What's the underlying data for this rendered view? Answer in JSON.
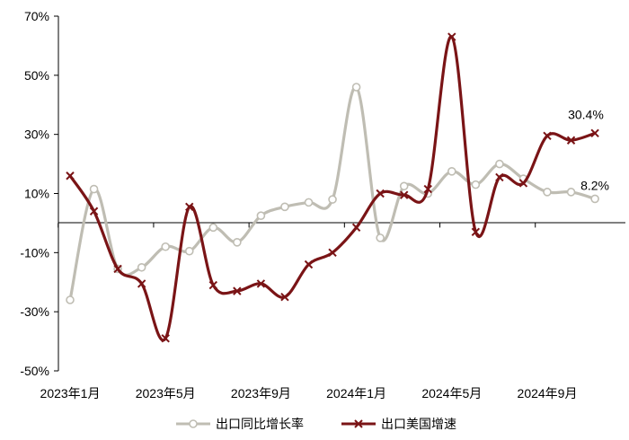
{
  "chart_data": {
    "type": "line",
    "title": "",
    "xlabel": "",
    "ylabel": "",
    "ylim": [
      -50,
      70
    ],
    "y_ticks": [
      "70%",
      "50%",
      "30%",
      "10%",
      "-10%",
      "-30%",
      "-50%"
    ],
    "y_tick_values": [
      70,
      50,
      30,
      10,
      -10,
      -30,
      -50
    ],
    "x": [
      "2023-01",
      "2023-02",
      "2023-03",
      "2023-04",
      "2023-05",
      "2023-06",
      "2023-07",
      "2023-08",
      "2023-09",
      "2023-10",
      "2023-11",
      "2023-12",
      "2024-01",
      "2024-02",
      "2024-03",
      "2024-04",
      "2024-05",
      "2024-06",
      "2024-07",
      "2024-08",
      "2024-09",
      "2024-10",
      "2024-11"
    ],
    "x_tick_labels": [
      {
        "index": 0,
        "label": "2023年1月"
      },
      {
        "index": 4,
        "label": "2023年5月"
      },
      {
        "index": 8,
        "label": "2023年9月"
      },
      {
        "index": 12,
        "label": "2024年1月"
      },
      {
        "index": 16,
        "label": "2024年5月"
      },
      {
        "index": 20,
        "label": "2024年9月"
      }
    ],
    "series": [
      {
        "name": "出口同比增长率",
        "color": "#bfbdb3",
        "marker": "circle",
        "values": [
          -26,
          11.5,
          -15.5,
          -15,
          -8,
          -9.5,
          -1.5,
          -6.5,
          2.5,
          5.5,
          7,
          8,
          46,
          -5,
          12.5,
          10,
          17.5,
          13,
          20,
          15,
          10.5,
          10.5,
          8.2
        ]
      },
      {
        "name": "出口美国增速",
        "color": "#7a1416",
        "marker": "x",
        "values": [
          16,
          4,
          -15.5,
          -20.5,
          -39,
          5.5,
          -21,
          -23,
          -20.5,
          -25,
          -14,
          -10,
          -1.5,
          10,
          9.5,
          11.5,
          63,
          -3,
          15.5,
          13.5,
          29.5,
          28,
          30.4
        ]
      }
    ],
    "annotations": [
      {
        "series": 1,
        "index": 22,
        "text": "30.4%"
      },
      {
        "series": 0,
        "index": 22,
        "text": "8.2%"
      }
    ],
    "legend": {
      "position": "bottom-center",
      "entries": [
        "出口同比增长率",
        "出口美国增速"
      ]
    },
    "zero_line": true
  }
}
